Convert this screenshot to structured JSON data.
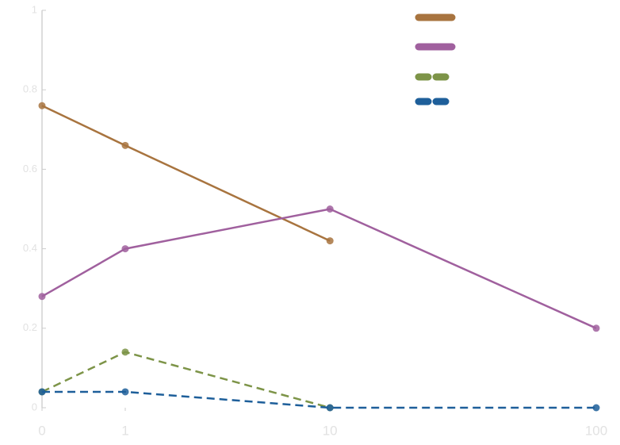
{
  "chart_data": {
    "type": "line",
    "xscale": "symlog",
    "x": [
      0,
      1,
      10,
      100
    ],
    "xlim": [
      0,
      100
    ],
    "xticks": [
      0,
      1,
      10,
      100
    ],
    "ylim": [
      0,
      1
    ],
    "yticks": [
      0,
      0.2,
      0.4,
      0.6,
      0.8,
      1
    ],
    "series": [
      {
        "color": "#a8743f",
        "dash": false,
        "values": [
          0.76,
          0.66,
          0.42,
          null
        ]
      },
      {
        "color": "#a0609e",
        "dash": false,
        "values": [
          0.28,
          0.4,
          0.5,
          0.2
        ]
      },
      {
        "color": "#7d9448",
        "dash": true,
        "values": [
          0.04,
          0.14,
          0,
          null
        ]
      },
      {
        "color": "#1e5f9a",
        "dash": true,
        "values": [
          0.04,
          0.04,
          0,
          0
        ]
      }
    ]
  }
}
